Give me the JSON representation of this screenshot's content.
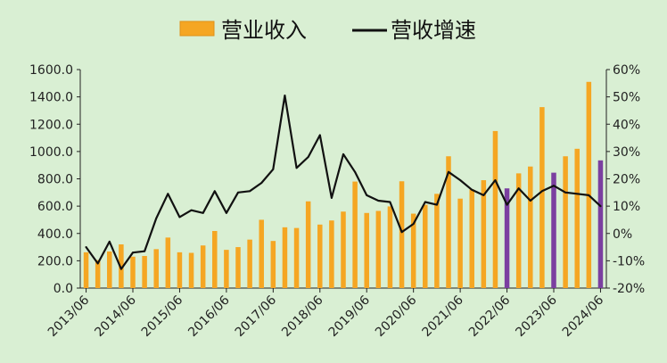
{
  "chart_data": {
    "type": "bar",
    "legend": {
      "placement": "top",
      "bar_label": "营业收入",
      "line_label": "营收增速"
    },
    "colors": {
      "background": "#d9efd3",
      "bar": "#f5a623",
      "bar_highlight": "#7b3fa0",
      "line": "#111111",
      "axis": "#222222"
    },
    "y_left": {
      "ylim": [
        0,
        1600
      ],
      "ticks": [
        "0.0",
        "200.0",
        "400.0",
        "600.0",
        "800.0",
        "1000.0",
        "1200.0",
        "1400.0",
        "1600.0"
      ]
    },
    "y_right": {
      "ylim": [
        -20,
        60
      ],
      "ticks": [
        "-20%",
        "-10%",
        "0%",
        "10%",
        "20%",
        "30%",
        "40%",
        "50%",
        "60%"
      ]
    },
    "x_tick_labels": [
      "2013/06",
      "2014/06",
      "2015/06",
      "2016/06",
      "2017/06",
      "2018/06",
      "2019/06",
      "2020/06",
      "2021/06",
      "2022/06",
      "2023/06",
      "2024/06"
    ],
    "series": [
      {
        "name": "营业收入",
        "kind": "bar",
        "values": [
          262,
          205,
          268,
          320,
          230,
          235,
          285,
          370,
          262,
          258,
          312,
          418,
          280,
          300,
          355,
          500,
          345,
          445,
          440,
          635,
          465,
          495,
          560,
          780,
          550,
          565,
          598,
          782,
          545,
          610,
          690,
          965,
          655,
          722,
          790,
          1150,
          730,
          840,
          890,
          1325,
          845,
          965,
          1020,
          1510,
          935
        ],
        "highlight_indices": [
          36,
          40,
          44
        ]
      },
      {
        "name": "营收增速",
        "kind": "line",
        "axis": "right",
        "values": [
          -5,
          -11,
          -3,
          -13,
          -7,
          -6.5,
          5.5,
          14.5,
          6,
          8.5,
          7.5,
          15.5,
          7.5,
          15,
          15.5,
          18.5,
          23.5,
          50.5,
          24,
          28,
          36,
          13,
          29,
          22.5,
          14,
          12,
          11.5,
          0.5,
          3.5,
          11.5,
          10.5,
          22.5,
          19.5,
          16,
          14,
          19.5,
          10.5,
          16.5,
          12,
          15.5,
          17.5,
          15,
          14.5,
          14,
          10
        ]
      }
    ]
  }
}
